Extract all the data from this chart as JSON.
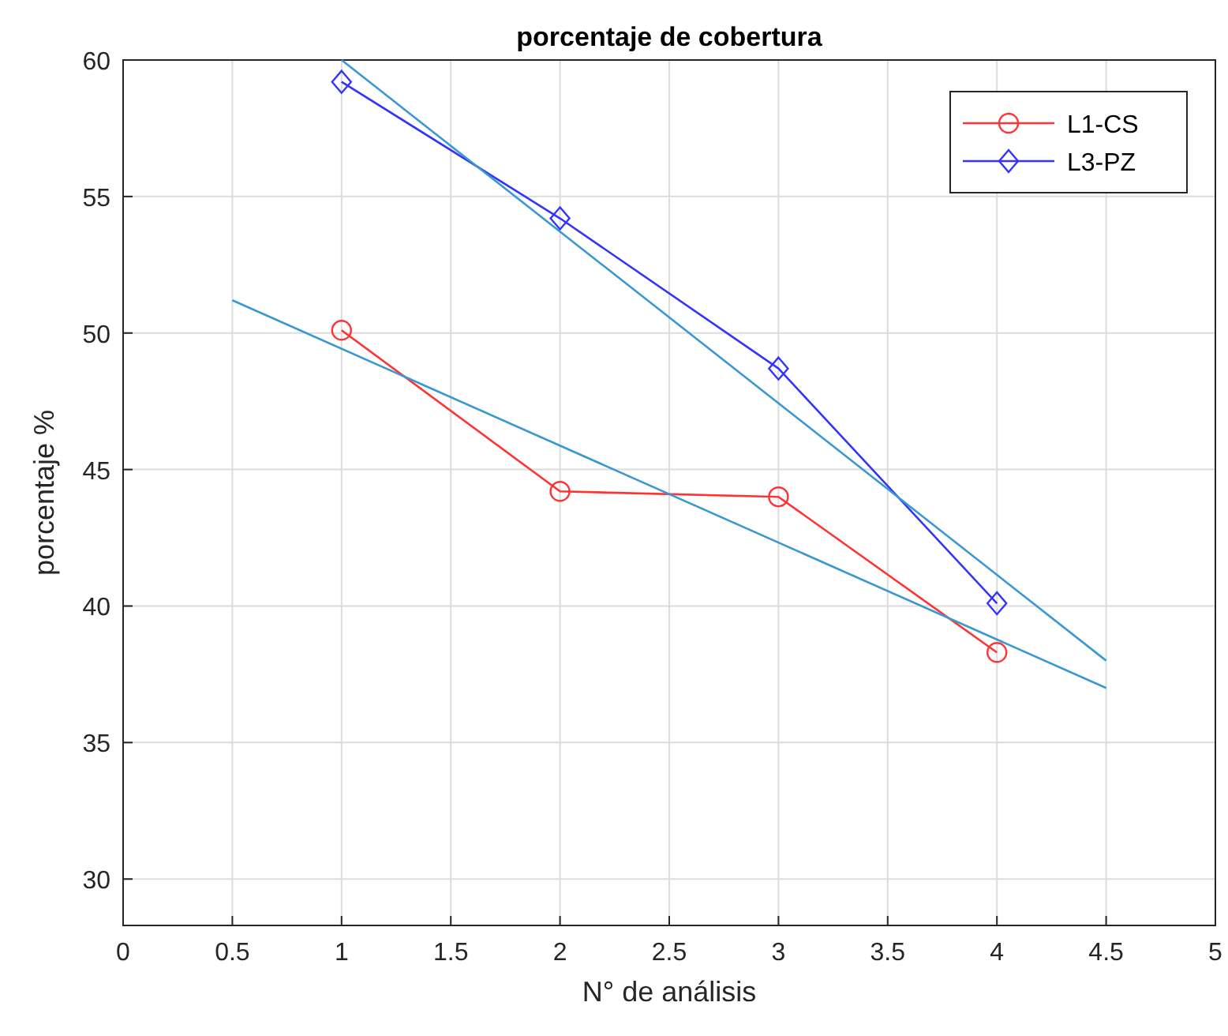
{
  "chart_data": {
    "type": "line",
    "title": "porcentaje de cobertura",
    "xlabel": "N° de análisis",
    "ylabel": "porcentaje %",
    "xlim": [
      0,
      5
    ],
    "xticks": [
      0,
      0.5,
      1,
      1.5,
      2,
      2.5,
      3,
      3.5,
      4,
      4.5,
      5
    ],
    "ylim": [
      28.3,
      60
    ],
    "yticks": [
      30,
      35,
      40,
      45,
      50,
      55,
      60
    ],
    "grid": true,
    "legend": "top right",
    "line_style": "solid",
    "series": [
      {
        "name": "L1-CS",
        "color": "#ff3333",
        "marker": "circle",
        "x": [
          1,
          2,
          3,
          4
        ],
        "values": [
          50.1,
          44.2,
          44.0,
          38.3
        ]
      },
      {
        "name": "L3-PZ",
        "color": "#3333ff",
        "marker": "diamond",
        "x": [
          1,
          2,
          3,
          4
        ],
        "values": [
          59.2,
          54.2,
          48.7,
          40.1
        ]
      },
      {
        "color": "#3a98d0",
        "marker": "none",
        "x": [
          0.5,
          4.5
        ],
        "values": [
          51.2,
          37.0
        ]
      },
      {
        "color": "#3a98d0",
        "marker": "none",
        "x": [
          1.0,
          4.5
        ],
        "values": [
          60.0,
          38.0
        ]
      }
    ]
  }
}
